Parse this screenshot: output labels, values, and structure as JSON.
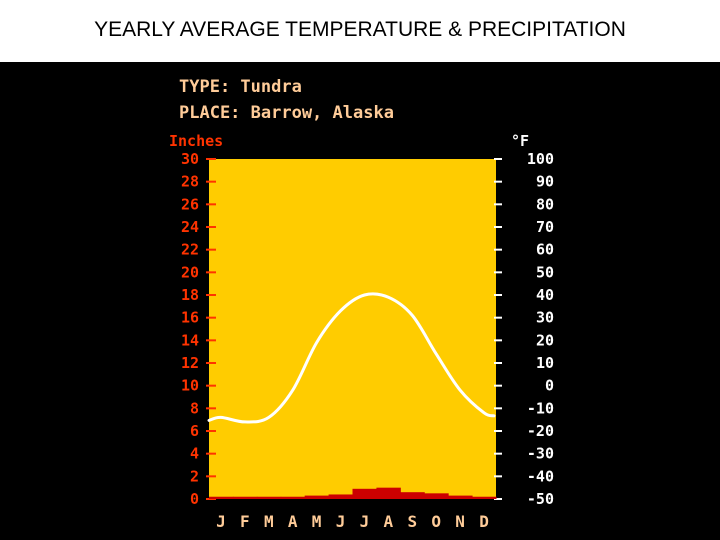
{
  "header": {
    "title": "YEARLY AVERAGE TEMPERATURE & PRECIPITATION"
  },
  "info": {
    "type_line": "TYPE: Tundra",
    "place_line": "PLACE: Barrow, Alaska"
  },
  "colors": {
    "background": "#000000",
    "plot_area": "#ffcc00",
    "precipitation": "#cc0000",
    "temperature_line": "#ffffff",
    "header_text": "#ffcc99",
    "left_axis_text": "#ff3300",
    "right_axis_text": "#ffffff"
  },
  "chart_data": {
    "type": "line",
    "categories": [
      "J",
      "F",
      "M",
      "A",
      "M",
      "J",
      "J",
      "A",
      "S",
      "O",
      "N",
      "D"
    ],
    "left_axis": {
      "label": "Inches",
      "range": [
        0,
        30
      ],
      "ticks": [
        "30",
        "28",
        "26",
        "24",
        "22",
        "20",
        "18",
        "16",
        "14",
        "12",
        "10",
        "8",
        "6",
        "4",
        "2",
        "0"
      ]
    },
    "right_axis": {
      "label": "°F",
      "range": [
        -50,
        100
      ],
      "ticks": [
        "100",
        "90",
        "80",
        "70",
        "60",
        "50",
        "40",
        "30",
        "20",
        "10",
        "0",
        "-10",
        "-20",
        "-30",
        "-40",
        "-50"
      ]
    },
    "series": [
      {
        "kind": "precipitation_bars",
        "unit": "inches",
        "values": [
          0.2,
          0.2,
          0.2,
          0.2,
          0.3,
          0.4,
          0.9,
          1.0,
          0.6,
          0.5,
          0.3,
          0.2
        ]
      },
      {
        "kind": "temperature_line",
        "unit": "°F",
        "values": [
          -14,
          -16,
          -14,
          -2,
          19,
          33,
          40,
          39,
          31,
          14,
          -2,
          -12
        ]
      }
    ],
    "grid": false
  }
}
